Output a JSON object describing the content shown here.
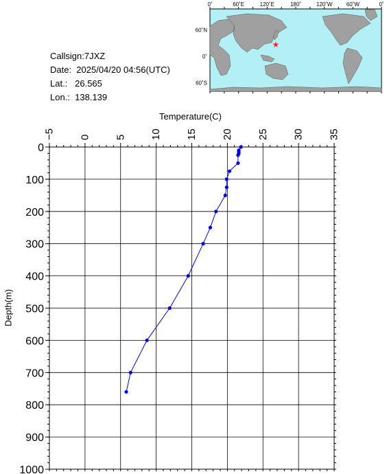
{
  "info": {
    "callsign": "Callsign:7JXZ",
    "date": "Date:  2025/04/20 04:56(UTC)",
    "lat": "Lat.:   26.565",
    "lon": "Lon.:  138.139"
  },
  "map": {
    "top_ticks": [
      "0˚",
      "60˚E",
      "120˚E",
      "180˚",
      "120˚W",
      "60˚W",
      "0˚"
    ],
    "lat_ticks": [
      "60˚N",
      "0˚",
      "60˚S"
    ],
    "ocean_color": "#b3f0f5",
    "land_color": "#a0a0a0",
    "marker_color": "#ff2020",
    "marker_lat": 26.565,
    "marker_lon": 138.139
  },
  "chart_data": {
    "type": "line",
    "title": "",
    "xlabel": "Temperature(C)",
    "ylabel": "Depth(m)",
    "xlim": [
      -5,
      35
    ],
    "ylim": [
      0,
      1000
    ],
    "x_ticks": [
      "−5",
      "0",
      "5",
      "10",
      "15",
      "20",
      "25",
      "30",
      "35"
    ],
    "y_ticks": [
      "0",
      "100",
      "200",
      "300",
      "400",
      "500",
      "600",
      "700",
      "800",
      "900",
      "1000"
    ],
    "line_color": "#0000ee",
    "grid": true,
    "series": [
      {
        "temperature": [
          21.9,
          21.6,
          21.6,
          21.6,
          21.5,
          21.5,
          20.3,
          19.9,
          19.9,
          19.7,
          18.4,
          17.6,
          16.6,
          14.5,
          11.9,
          8.7,
          6.4,
          5.8
        ],
        "depth": [
          0,
          10,
          15,
          20,
          25,
          50,
          75,
          100,
          125,
          150,
          200,
          250,
          300,
          400,
          500,
          600,
          700,
          760
        ]
      }
    ]
  }
}
